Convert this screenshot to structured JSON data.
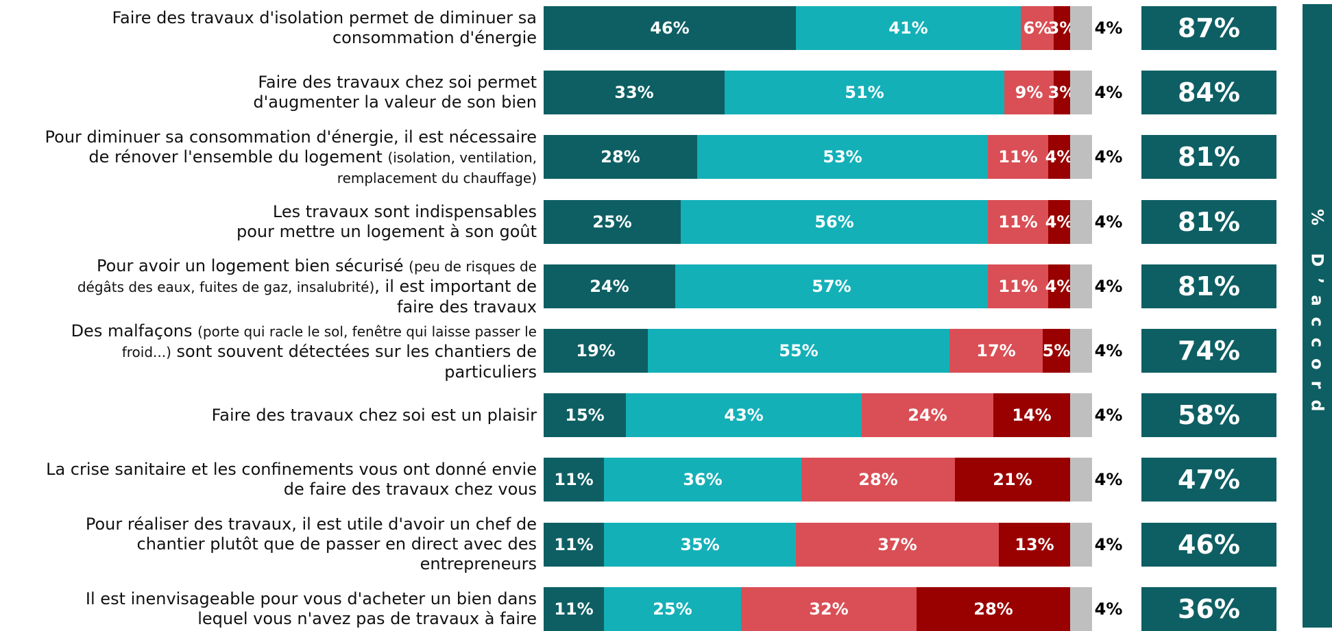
{
  "chart_data": {
    "type": "stacked-barh",
    "xlim": [
      0,
      100
    ],
    "categories": [
      [
        [
          {
            "text": "Faire des travaux d'isolation permet de diminuer sa",
            "small": false
          }
        ],
        [
          {
            "text": "consommation d'énergie",
            "small": false
          }
        ]
      ],
      [
        [
          {
            "text": "Faire des travaux chez soi permet",
            "small": false
          }
        ],
        [
          {
            "text": "d'augmenter la valeur de son bien",
            "small": false
          }
        ]
      ],
      [
        [
          {
            "text": "Pour diminuer sa consommation d'énergie, il est nécessaire",
            "small": false
          }
        ],
        [
          {
            "text": "de rénover l'ensemble du logement ",
            "small": false
          },
          {
            "text": "(isolation, ventilation,",
            "small": true
          }
        ],
        [
          {
            "text": "remplacement du chauffage)",
            "small": true
          }
        ]
      ],
      [
        [
          {
            "text": "Les travaux sont indispensables",
            "small": false
          }
        ],
        [
          {
            "text": "pour mettre un logement à son goût",
            "small": false
          }
        ]
      ],
      [
        [
          {
            "text": "Pour avoir un logement bien sécurisé ",
            "small": false
          },
          {
            "text": "(peu de risques de",
            "small": true
          }
        ],
        [
          {
            "text": "dégâts des eaux, fuites de gaz, insalubrité)",
            "small": true
          },
          {
            "text": ", il est important de",
            "small": false
          }
        ],
        [
          {
            "text": "faire des travaux",
            "small": false
          }
        ]
      ],
      [
        [
          {
            "text": "Des malfaçons ",
            "small": false
          },
          {
            "text": "(porte qui racle le sol, fenêtre qui laisse passer le",
            "small": true
          }
        ],
        [
          {
            "text": "froid...)",
            "small": true
          },
          {
            "text": " sont souvent détectées sur les chantiers de",
            "small": false
          }
        ],
        [
          {
            "text": "particuliers",
            "small": false
          }
        ]
      ],
      [
        [
          {
            "text": "Faire des travaux chez soi est un plaisir",
            "small": false
          }
        ]
      ],
      [
        [
          {
            "text": "La crise sanitaire et les confinements vous ont donné envie",
            "small": false
          }
        ],
        [
          {
            "text": "de faire des travaux chez vous",
            "small": false
          }
        ]
      ],
      [
        [
          {
            "text": "Pour réaliser des travaux, il est utile d'avoir un chef de",
            "small": false
          }
        ],
        [
          {
            "text": "chantier plutôt que de passer en direct avec des",
            "small": false
          }
        ],
        [
          {
            "text": "entrepreneurs",
            "small": false
          }
        ]
      ],
      [
        [
          {
            "text": "Il est inenvisageable pour vous d'acheter un bien dans",
            "small": false
          }
        ],
        [
          {
            "text": "lequel vous n'avez pas de travaux à faire",
            "small": false
          }
        ]
      ]
    ],
    "series": [
      {
        "color": "#0e5f63",
        "label_color": "#ffffff",
        "label_position": "inside",
        "values": [
          46,
          33,
          28,
          25,
          24,
          19,
          15,
          11,
          11,
          11
        ],
        "value_labels": [
          "46%",
          "33%",
          "28%",
          "25%",
          "24%",
          "19%",
          "15%",
          "11%",
          "11%",
          "11%"
        ]
      },
      {
        "color": "#14b0b8",
        "label_color": "#ffffff",
        "label_position": "inside",
        "values": [
          41,
          51,
          53,
          56,
          57,
          55,
          43,
          36,
          35,
          25
        ],
        "value_labels": [
          "41%",
          "51%",
          "53%",
          "56%",
          "57%",
          "55%",
          "43%",
          "36%",
          "35%",
          "25%"
        ]
      },
      {
        "color": "#d94f55",
        "label_color": "#ffffff",
        "label_position": "inside",
        "values": [
          6,
          9,
          11,
          11,
          11,
          17,
          24,
          28,
          37,
          32
        ],
        "value_labels": [
          "6%",
          "9%",
          "11%",
          "11%",
          "11%",
          "17%",
          "24%",
          "28%",
          "37%",
          "32%"
        ]
      },
      {
        "color": "#990000",
        "label_color": "#ffffff",
        "label_position": "inside",
        "values": [
          3,
          3,
          4,
          4,
          4,
          5,
          14,
          21,
          13,
          28
        ],
        "value_labels": [
          "3%",
          "3%",
          "4%",
          "4%",
          "4%",
          "5%",
          "14%",
          "21%",
          "13%",
          "28%"
        ]
      },
      {
        "color": "#bfbfbf",
        "label_color": "#000000",
        "label_position": "outside",
        "values": [
          4,
          4,
          4,
          4,
          4,
          4,
          4,
          4,
          4,
          4
        ],
        "value_labels": [
          "4%",
          "4%",
          "4%",
          "4%",
          "4%",
          "4%",
          "4%",
          "4%",
          "4%",
          "4%"
        ]
      }
    ],
    "totals": {
      "color": "#0e5f63",
      "values": [
        87,
        84,
        81,
        81,
        81,
        74,
        58,
        47,
        46,
        36
      ],
      "value_labels": [
        "87%",
        "84%",
        "81%",
        "81%",
        "81%",
        "74%",
        "58%",
        "47%",
        "46%",
        "36%"
      ]
    },
    "side_label": "% D’accord"
  }
}
